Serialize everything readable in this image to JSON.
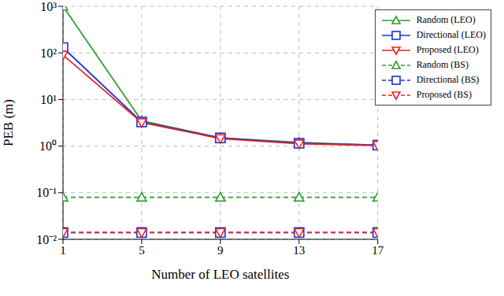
{
  "chart_data": {
    "type": "line",
    "x_label": "Number of LEO satellites",
    "y_label": "PEB (m)",
    "x": [
      1,
      5,
      9,
      13,
      17
    ],
    "xlim": [
      1,
      17
    ],
    "xticks": [
      1,
      5,
      9,
      13,
      17
    ],
    "ylim": [
      0.01,
      1000
    ],
    "yticks": [
      {
        "value": 0.01,
        "label": "10⁻²"
      },
      {
        "value": 0.1,
        "label": "10⁻¹"
      },
      {
        "value": 1,
        "label": "10⁰"
      },
      {
        "value": 10,
        "label": "10¹"
      },
      {
        "value": 100,
        "label": "10²"
      },
      {
        "value": 1000,
        "label": "10³"
      }
    ],
    "log": "y",
    "grid": true,
    "legend": "top-right",
    "series": [
      {
        "name": "Random (LEO)",
        "color": "#2e9e2e",
        "marker": "triangle-up",
        "line_style": "solid",
        "values": [
          1000,
          3.5,
          1.5,
          1.2,
          1.05
        ]
      },
      {
        "name": "Directional (LEO)",
        "color": "#1f2fe0",
        "marker": "square",
        "line_style": "solid",
        "values": [
          130,
          3.3,
          1.5,
          1.15,
          1.05
        ]
      },
      {
        "name": "Proposed (LEO)",
        "color": "#ee2222",
        "marker": "triangle-down",
        "line_style": "solid",
        "values": [
          90,
          3.2,
          1.45,
          1.12,
          1.03
        ]
      },
      {
        "name": "Random (BS)",
        "color": "#2e9e2e",
        "marker": "triangle-up",
        "line_style": "dashed",
        "values": [
          0.08,
          0.08,
          0.08,
          0.08,
          0.08
        ]
      },
      {
        "name": "Directional (BS)",
        "color": "#1f2fe0",
        "marker": "square",
        "line_style": "dashed",
        "values": [
          0.014,
          0.014,
          0.014,
          0.014,
          0.014
        ]
      },
      {
        "name": "Proposed (BS)",
        "color": "#ee2222",
        "marker": "triangle-down",
        "line_style": "dashed",
        "values": [
          0.014,
          0.014,
          0.014,
          0.014,
          0.014
        ]
      }
    ]
  }
}
